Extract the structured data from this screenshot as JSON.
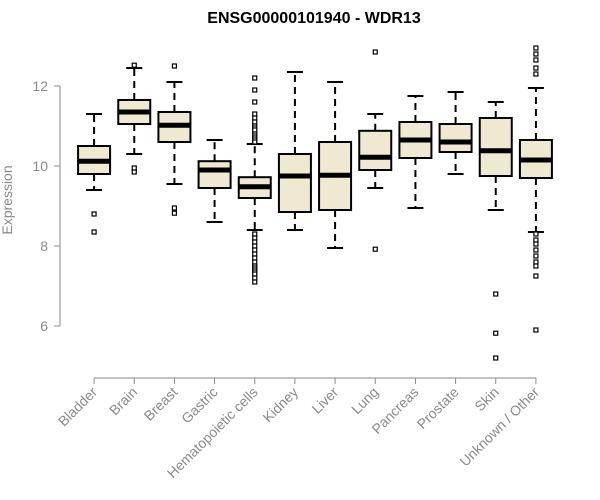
{
  "chart_data": {
    "type": "boxplot",
    "title": "ENSG00000101940 - WDR13",
    "xlabel": "",
    "ylabel": "Expression",
    "ylim": [
      5,
      13.3
    ],
    "yticks": [
      6,
      8,
      10,
      12
    ],
    "grid": false,
    "colors": {
      "box_fill": "#efe9d2",
      "box_stroke": "#000000",
      "median": "#000000",
      "axis": "#8a8a8a",
      "label": "#8a8a8a"
    },
    "categories": [
      "Bladder",
      "Brain",
      "Breast",
      "Gastric",
      "Hematopoietic cells",
      "Kidney",
      "Liver",
      "Lung",
      "Pancreas",
      "Prostate",
      "Skin",
      "Unknown / Other"
    ],
    "boxes": [
      {
        "name": "Bladder",
        "whisker_low": 9.4,
        "q1": 9.8,
        "median": 10.12,
        "q3": 10.5,
        "whisker_high": 11.3,
        "outliers": [
          8.8,
          8.35
        ]
      },
      {
        "name": "Brain",
        "whisker_low": 10.3,
        "q1": 11.05,
        "median": 11.35,
        "q3": 11.65,
        "whisker_high": 12.45,
        "outliers": [
          12.52,
          9.95,
          9.85
        ]
      },
      {
        "name": "Breast",
        "whisker_low": 9.55,
        "q1": 10.6,
        "median": 11.02,
        "q3": 11.35,
        "whisker_high": 12.1,
        "outliers": [
          12.5,
          8.95,
          8.82
        ]
      },
      {
        "name": "Gastric",
        "whisker_low": 8.6,
        "q1": 9.45,
        "median": 9.9,
        "q3": 10.12,
        "whisker_high": 10.65,
        "outliers": []
      },
      {
        "name": "Hematopoietic cells",
        "whisker_low": 8.4,
        "q1": 9.2,
        "median": 9.48,
        "q3": 9.72,
        "whisker_high": 10.55,
        "outliers": [
          12.2,
          11.9,
          11.6,
          11.3,
          11.2,
          11.1,
          11.0,
          10.95,
          10.9,
          10.8,
          10.75,
          10.7,
          10.65,
          10.6,
          8.3,
          8.2,
          8.1,
          8.0,
          7.9,
          7.8,
          7.7,
          7.6,
          7.5,
          7.45,
          7.4,
          7.35,
          7.3,
          7.2,
          7.1
        ]
      },
      {
        "name": "Kidney",
        "whisker_low": 8.4,
        "q1": 8.85,
        "median": 9.75,
        "q3": 10.3,
        "whisker_high": 12.35,
        "outliers": []
      },
      {
        "name": "Liver",
        "whisker_low": 7.95,
        "q1": 8.9,
        "median": 9.77,
        "q3": 10.6,
        "whisker_high": 12.1,
        "outliers": []
      },
      {
        "name": "Lung",
        "whisker_low": 9.45,
        "q1": 9.9,
        "median": 10.22,
        "q3": 10.88,
        "whisker_high": 11.3,
        "outliers": [
          12.85,
          7.92
        ]
      },
      {
        "name": "Pancreas",
        "whisker_low": 8.95,
        "q1": 10.2,
        "median": 10.65,
        "q3": 11.1,
        "whisker_high": 11.75,
        "outliers": []
      },
      {
        "name": "Prostate",
        "whisker_low": 9.8,
        "q1": 10.35,
        "median": 10.6,
        "q3": 11.05,
        "whisker_high": 11.85,
        "outliers": []
      },
      {
        "name": "Skin",
        "whisker_low": 8.9,
        "q1": 9.75,
        "median": 10.38,
        "q3": 11.2,
        "whisker_high": 11.6,
        "outliers": [
          6.8,
          5.82,
          5.2
        ]
      },
      {
        "name": "Unknown / Other",
        "whisker_low": 8.35,
        "q1": 9.7,
        "median": 10.15,
        "q3": 10.65,
        "whisker_high": 11.95,
        "outliers": [
          12.95,
          12.8,
          12.65,
          12.45,
          12.3,
          8.3,
          8.15,
          8.05,
          7.9,
          7.75,
          7.6,
          7.5,
          7.25,
          5.9
        ]
      }
    ]
  }
}
